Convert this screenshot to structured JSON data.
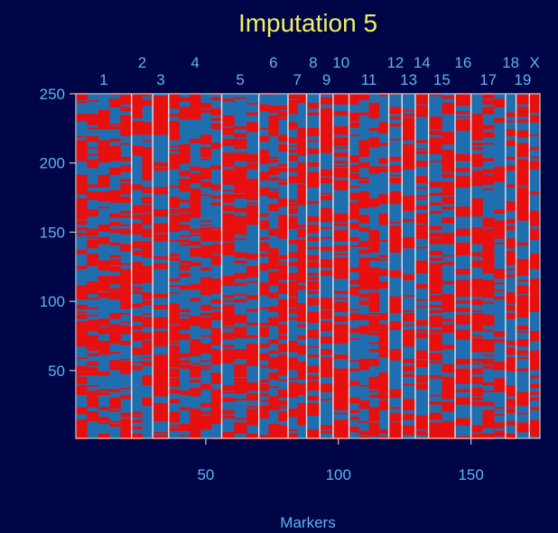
{
  "chart_data": {
    "type": "heatmap",
    "title": "Imputation 5",
    "xlabel": "Markers",
    "ylabel": "",
    "xlim": [
      1,
      176
    ],
    "ylim": [
      1,
      250
    ],
    "x_ticks": [
      "50",
      "100",
      "150"
    ],
    "x_tick_values": [
      50,
      100,
      150
    ],
    "y_ticks": [
      "50",
      "100",
      "150",
      "200",
      "250"
    ],
    "y_tick_values": [
      50,
      100,
      150,
      200,
      250
    ],
    "n_rows": 250,
    "n_markers": 176,
    "genotype_colors": [
      "#E8100F",
      "#1F6FB0"
    ],
    "chromosomes": [
      {
        "label": "1",
        "start": 1,
        "end": 22
      },
      {
        "label": "2",
        "start": 22,
        "end": 30
      },
      {
        "label": "3",
        "start": 30,
        "end": 36
      },
      {
        "label": "4",
        "start": 36,
        "end": 56
      },
      {
        "label": "5",
        "start": 56,
        "end": 70
      },
      {
        "label": "6",
        "start": 70,
        "end": 81
      },
      {
        "label": "7",
        "start": 81,
        "end": 88
      },
      {
        "label": "8",
        "start": 88,
        "end": 93
      },
      {
        "label": "9",
        "start": 93,
        "end": 98
      },
      {
        "label": "10",
        "start": 98,
        "end": 104
      },
      {
        "label": "11",
        "start": 104,
        "end": 119
      },
      {
        "label": "12",
        "start": 119,
        "end": 124
      },
      {
        "label": "13",
        "start": 124,
        "end": 129
      },
      {
        "label": "14",
        "start": 129,
        "end": 134
      },
      {
        "label": "15",
        "start": 134,
        "end": 144
      },
      {
        "label": "16",
        "start": 144,
        "end": 150
      },
      {
        "label": "17",
        "start": 150,
        "end": 163
      },
      {
        "label": "18",
        "start": 163,
        "end": 167
      },
      {
        "label": "19",
        "start": 167,
        "end": 172
      },
      {
        "label": "X",
        "start": 172,
        "end": 176
      }
    ]
  }
}
